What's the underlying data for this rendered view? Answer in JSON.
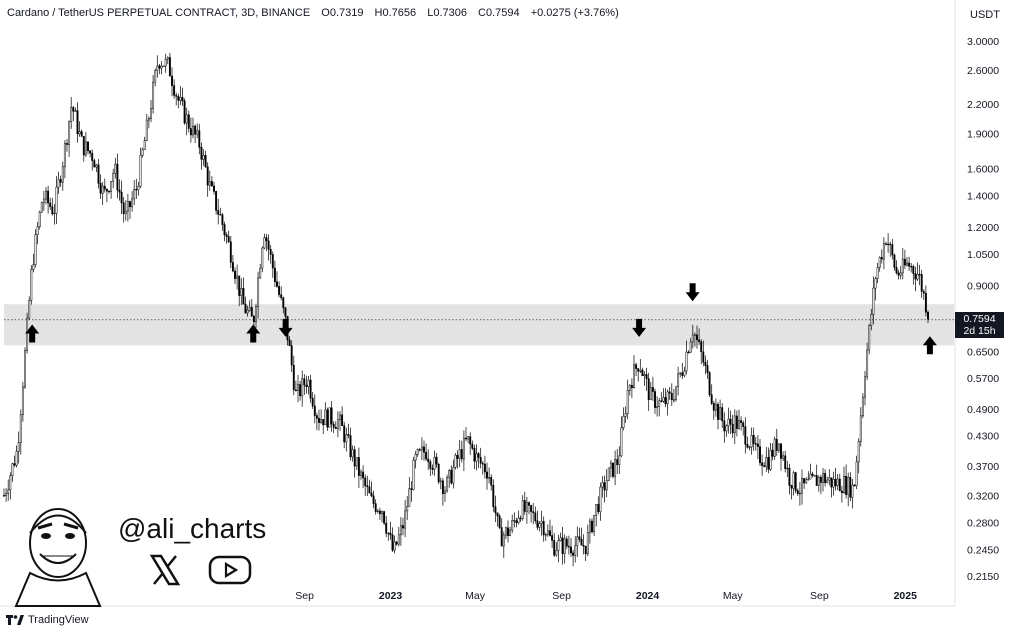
{
  "header": {
    "symbol": "Cardano / TetherUS PERPETUAL CONTRACT, 3D, BINANCE",
    "open": "O0.7319",
    "high": "H0.7656",
    "low": "L0.7306",
    "close": "C0.7594",
    "change": "+0.0275 (+3.76%)"
  },
  "currency_label": "USDT",
  "last_price": {
    "value": "0.7594",
    "countdown": "2d 15h"
  },
  "overlay": {
    "handle": "@ali_charts",
    "x_icon": "x-logo-icon",
    "youtube_icon": "youtube-play-icon"
  },
  "footer": {
    "brand": "TradingView"
  },
  "colors": {
    "candles": "#000000",
    "zone": "#e3e3e3",
    "price_tag": "#131722",
    "background": "#ffffff"
  },
  "chart_data": {
    "type": "candlestick",
    "ytype": "log",
    "yticks": [
      "3.0000",
      "2.6000",
      "2.2000",
      "1.9000",
      "1.6000",
      "1.4000",
      "1.2000",
      "1.0500",
      "0.9000",
      "0.7594",
      "0.6500",
      "0.5700",
      "0.4900",
      "0.4300",
      "0.3700",
      "0.3200",
      "0.2800",
      "0.2450",
      "0.2150"
    ],
    "xticks": [
      {
        "label": "Sep",
        "bold": false
      },
      {
        "label": "2023",
        "bold": true
      },
      {
        "label": "May",
        "bold": false
      },
      {
        "label": "Sep",
        "bold": false
      },
      {
        "label": "2024",
        "bold": true
      },
      {
        "label": "May",
        "bold": false
      },
      {
        "label": "Sep",
        "bold": false
      },
      {
        "label": "2025",
        "bold": true
      }
    ],
    "support_resistance_zone": [
      0.67,
      0.82
    ],
    "last_price_line": 0.7594,
    "price_path": [
      [
        "2021-07-01",
        0.32
      ],
      [
        "2021-07-20",
        0.4
      ],
      [
        "2021-08-10",
        1.0
      ],
      [
        "2021-08-25",
        1.4
      ],
      [
        "2021-09-10",
        1.3
      ],
      [
        "2021-09-25",
        1.75
      ],
      [
        "2021-10-05",
        2.2
      ],
      [
        "2021-10-20",
        1.8
      ],
      [
        "2021-11-05",
        1.7
      ],
      [
        "2021-11-20",
        1.4
      ],
      [
        "2021-12-05",
        1.6
      ],
      [
        "2021-12-20",
        1.25
      ],
      [
        "2022-01-05",
        1.45
      ],
      [
        "2022-01-20",
        1.95
      ],
      [
        "2022-02-05",
        2.75
      ],
      [
        "2022-02-20",
        2.65
      ],
      [
        "2022-03-05",
        2.25
      ],
      [
        "2022-03-20",
        2.0
      ],
      [
        "2022-04-05",
        1.8
      ],
      [
        "2022-04-20",
        1.45
      ],
      [
        "2022-05-05",
        1.25
      ],
      [
        "2022-05-20",
        1.05
      ],
      [
        "2022-06-05",
        0.82
      ],
      [
        "2022-06-20",
        0.75
      ],
      [
        "2022-07-05",
        1.2
      ],
      [
        "2022-07-20",
        0.95
      ],
      [
        "2022-08-05",
        0.75
      ],
      [
        "2022-08-20",
        0.52
      ],
      [
        "2022-09-05",
        0.57
      ],
      [
        "2022-09-20",
        0.47
      ],
      [
        "2022-10-05",
        0.47
      ],
      [
        "2022-10-20",
        0.46
      ],
      [
        "2022-11-05",
        0.4
      ],
      [
        "2022-11-20",
        0.35
      ],
      [
        "2022-12-05",
        0.31
      ],
      [
        "2022-12-20",
        0.3
      ],
      [
        "2023-01-05",
        0.24
      ],
      [
        "2023-01-20",
        0.28
      ],
      [
        "2023-02-05",
        0.38
      ],
      [
        "2023-02-20",
        0.4
      ],
      [
        "2023-03-05",
        0.37
      ],
      [
        "2023-03-20",
        0.33
      ],
      [
        "2023-04-05",
        0.38
      ],
      [
        "2023-04-20",
        0.42
      ],
      [
        "2023-05-05",
        0.38
      ],
      [
        "2023-05-20",
        0.36
      ],
      [
        "2023-06-05",
        0.26
      ],
      [
        "2023-06-20",
        0.27
      ],
      [
        "2023-07-05",
        0.3
      ],
      [
        "2023-07-20",
        0.29
      ],
      [
        "2023-08-05",
        0.28
      ],
      [
        "2023-08-20",
        0.25
      ],
      [
        "2023-09-05",
        0.25
      ],
      [
        "2023-09-20",
        0.25
      ],
      [
        "2023-10-05",
        0.25
      ],
      [
        "2023-10-20",
        0.3
      ],
      [
        "2023-11-05",
        0.35
      ],
      [
        "2023-11-20",
        0.38
      ],
      [
        "2023-12-05",
        0.55
      ],
      [
        "2023-12-20",
        0.62
      ],
      [
        "2024-01-05",
        0.52
      ],
      [
        "2024-01-20",
        0.5
      ],
      [
        "2024-02-05",
        0.52
      ],
      [
        "2024-02-20",
        0.6
      ],
      [
        "2024-03-05",
        0.73
      ],
      [
        "2024-03-20",
        0.62
      ],
      [
        "2024-04-05",
        0.5
      ],
      [
        "2024-04-20",
        0.45
      ],
      [
        "2024-05-05",
        0.46
      ],
      [
        "2024-05-20",
        0.43
      ],
      [
        "2024-06-05",
        0.39
      ],
      [
        "2024-06-20",
        0.38
      ],
      [
        "2024-07-05",
        0.42
      ],
      [
        "2024-07-20",
        0.35
      ],
      [
        "2024-08-05",
        0.33
      ],
      [
        "2024-08-20",
        0.34
      ],
      [
        "2024-09-05",
        0.35
      ],
      [
        "2024-09-20",
        0.34
      ],
      [
        "2024-10-05",
        0.34
      ],
      [
        "2024-10-20",
        0.33
      ],
      [
        "2024-11-05",
        0.6
      ],
      [
        "2024-11-20",
        0.95
      ],
      [
        "2024-12-05",
        1.15
      ],
      [
        "2024-12-20",
        0.95
      ],
      [
        "2025-01-05",
        1.0
      ],
      [
        "2025-01-20",
        0.95
      ],
      [
        "2025-02-05",
        0.76
      ]
    ],
    "annotations": [
      {
        "type": "arrow-up",
        "date": "2021-08-10",
        "price": 0.71
      },
      {
        "type": "arrow-up",
        "date": "2022-06-20",
        "price": 0.71
      },
      {
        "type": "arrow-down",
        "date": "2022-08-05",
        "price": 0.73
      },
      {
        "type": "arrow-down",
        "date": "2023-12-20",
        "price": 0.73
      },
      {
        "type": "arrow-down",
        "date": "2024-03-05",
        "price": 0.87
      },
      {
        "type": "arrow-up",
        "date": "2025-02-05",
        "price": 0.67
      }
    ]
  }
}
